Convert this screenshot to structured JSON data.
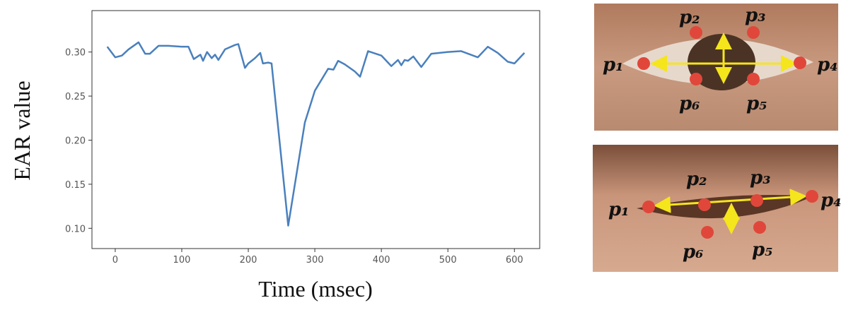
{
  "chart_data": {
    "type": "line",
    "x_label": "Time (msec)",
    "y_label": "EAR value",
    "x": [
      -12,
      0,
      10,
      20,
      35,
      45,
      52,
      65,
      80,
      100,
      110,
      118,
      128,
      132,
      138,
      145,
      150,
      155,
      165,
      180,
      185,
      195,
      200,
      210,
      218,
      222,
      230,
      235,
      260,
      285,
      300,
      320,
      328,
      335,
      345,
      360,
      368,
      380,
      400,
      415,
      425,
      430,
      435,
      440,
      448,
      460,
      475,
      500,
      520,
      545,
      560,
      575,
      590,
      600,
      615
    ],
    "series": [
      {
        "color": "#4a80bd",
        "values": [
          0.306,
          0.294,
          0.296,
          0.303,
          0.311,
          0.298,
          0.298,
          0.307,
          0.307,
          0.306,
          0.306,
          0.292,
          0.297,
          0.29,
          0.3,
          0.293,
          0.297,
          0.291,
          0.303,
          0.308,
          0.309,
          0.282,
          0.287,
          0.293,
          0.299,
          0.287,
          0.288,
          0.287,
          0.103,
          0.22,
          0.256,
          0.281,
          0.28,
          0.29,
          0.286,
          0.278,
          0.272,
          0.301,
          0.296,
          0.284,
          0.291,
          0.285,
          0.291,
          0.29,
          0.295,
          0.283,
          0.298,
          0.3,
          0.301,
          0.294,
          0.306,
          0.299,
          0.289,
          0.287,
          0.299
        ]
      }
    ],
    "xlim": [
      -35,
      638
    ],
    "ylim": [
      0.077,
      0.347
    ],
    "xticks": [
      0,
      100,
      200,
      300,
      400,
      500,
      600
    ],
    "yticks": [
      {
        "value": 0.1,
        "label": "0.10"
      },
      {
        "value": 0.15,
        "label": "0.15"
      },
      {
        "value": 0.2,
        "label": "0.20"
      },
      {
        "value": 0.25,
        "label": "0.25"
      },
      {
        "value": 0.3,
        "label": "0.30"
      }
    ]
  },
  "eye_diagrams": [
    {
      "labels": [
        "p₁",
        "p₂",
        "p₃",
        "p₄",
        "p₅",
        "p₆"
      ]
    },
    {
      "labels": [
        "p₁",
        "p₂",
        "p₃",
        "p₄",
        "p₅",
        "p₆"
      ]
    }
  ]
}
